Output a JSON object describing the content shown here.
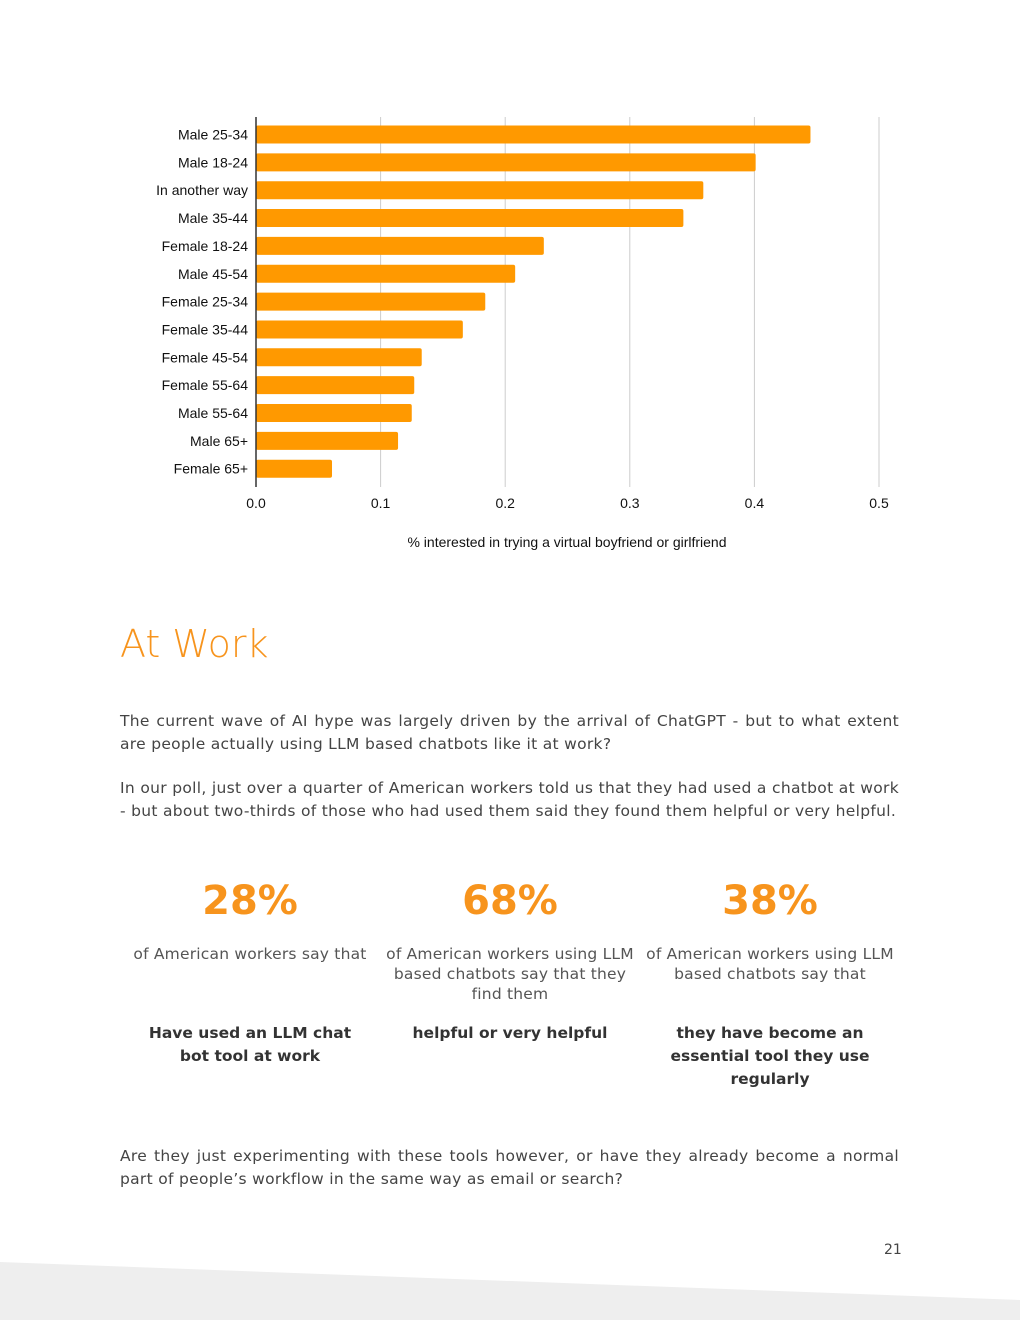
{
  "chart_data": {
    "type": "bar",
    "orientation": "horizontal",
    "categories": [
      "Male 25-34",
      "Male 18-24",
      "In another way",
      "Male 35-44",
      "Female 18-24",
      "Male 45-54",
      "Female 25-34",
      "Female 35-44",
      "Female 45-54",
      "Female 55-64",
      "Male 55-64",
      "Male 65+",
      "Female 65+"
    ],
    "values": [
      0.445,
      0.401,
      0.359,
      0.343,
      0.231,
      0.208,
      0.184,
      0.166,
      0.133,
      0.127,
      0.125,
      0.114,
      0.061
    ],
    "xlabel": "% interested in trying a virtual boyfriend or girlfriend",
    "xlim": [
      0,
      0.5
    ],
    "xticks": [
      "0.0",
      "0.1",
      "0.2",
      "0.3",
      "0.4",
      "0.5"
    ],
    "grid": true,
    "color": "#ff9900"
  },
  "section": {
    "title": "At Work",
    "p1": "The current wave of AI hype was largely driven by the arrival of ChatGPT - but to what extent are people actually using LLM based chatbots like it at work?",
    "p2": "In our poll, just over a quarter of American workers told us that they had used a chatbot at work - but about two-thirds of those who had used them said they found them helpful or very helpful.",
    "stats": [
      {
        "value": "28%",
        "desc": "of American workers say that",
        "bold": "Have used an LLM chat bot tool at work"
      },
      {
        "value": "68%",
        "desc": "of American workers using LLM based chatbots say that they find them",
        "bold": "helpful or very helpful"
      },
      {
        "value": "38%",
        "desc": "of American workers using LLM based chatbots say that",
        "bold": "they have become an essential tool they use regularly"
      }
    ],
    "p3": "Are they just experimenting with these tools however, or have they already become a normal part of people’s workflow in the same way as email or search?"
  },
  "page_number": "21"
}
